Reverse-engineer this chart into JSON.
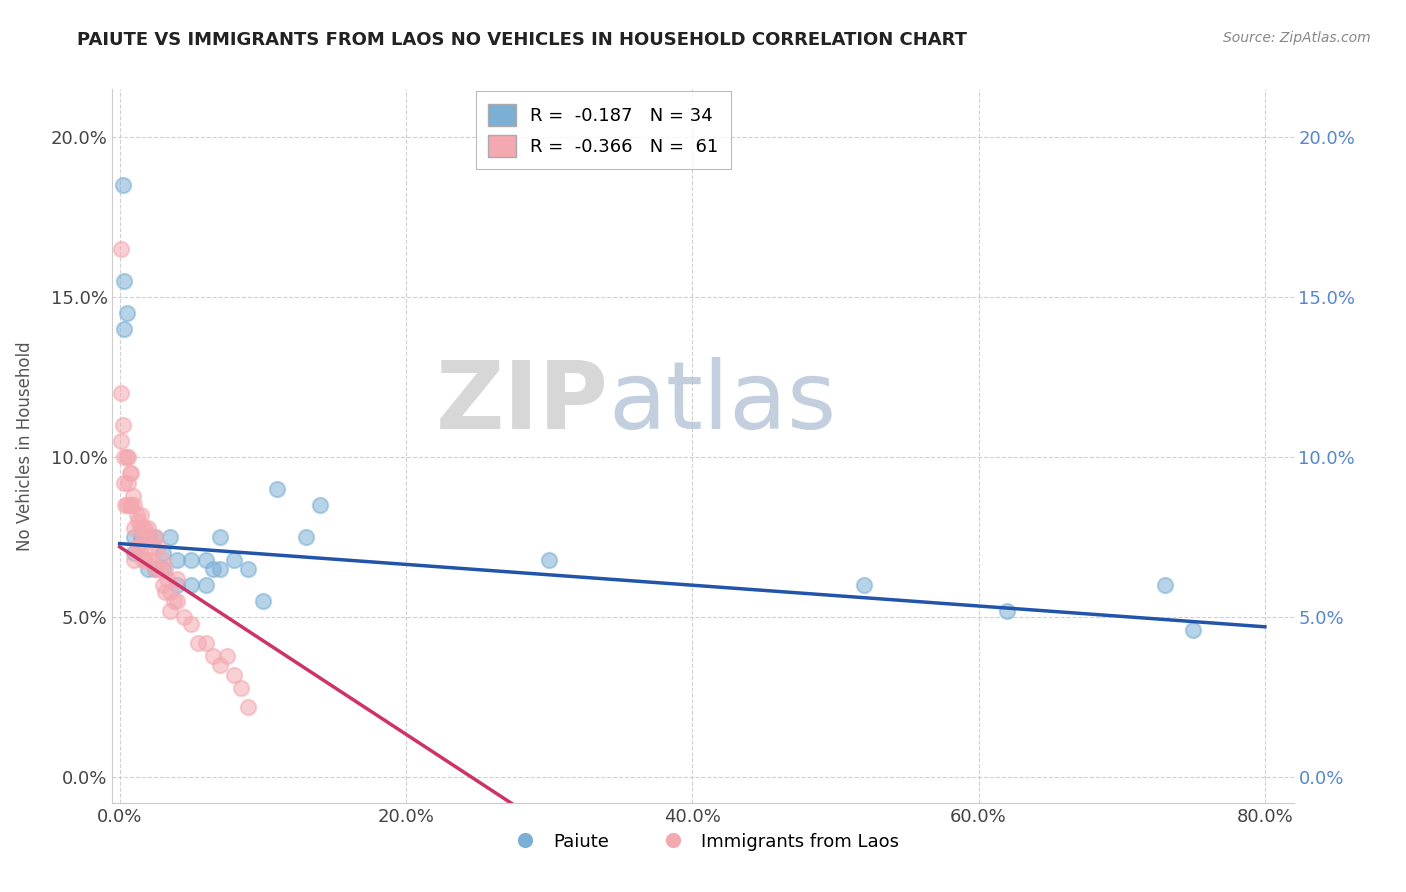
{
  "title": "PAIUTE VS IMMIGRANTS FROM LAOS NO VEHICLES IN HOUSEHOLD CORRELATION CHART",
  "source": "Source: ZipAtlas.com",
  "xlabel_ticks": [
    "0.0%",
    "20.0%",
    "40.0%",
    "60.0%",
    "80.0%"
  ],
  "ylabel_ticks": [
    "0.0%",
    "5.0%",
    "10.0%",
    "15.0%",
    "20.0%"
  ],
  "xlim": [
    -0.005,
    0.82
  ],
  "ylim": [
    -0.008,
    0.215
  ],
  "legend_blue_label": "Paiute",
  "legend_pink_label": "Immigrants from Laos",
  "r_blue": -0.187,
  "n_blue": 34,
  "r_pink": -0.366,
  "n_pink": 61,
  "blue_color": "#7BAFD4",
  "pink_color": "#F4A8B0",
  "blue_line_color": "#2255AA",
  "pink_line_color": "#CC3366",
  "watermark_zip": "ZIP",
  "watermark_atlas": "atlas",
  "blue_scatter_x": [
    0.002,
    0.003,
    0.003,
    0.005,
    0.01,
    0.01,
    0.015,
    0.02,
    0.02,
    0.025,
    0.025,
    0.03,
    0.03,
    0.035,
    0.04,
    0.04,
    0.05,
    0.05,
    0.06,
    0.06,
    0.065,
    0.07,
    0.07,
    0.08,
    0.09,
    0.1,
    0.11,
    0.13,
    0.14,
    0.3,
    0.52,
    0.62,
    0.73,
    0.75
  ],
  "blue_scatter_y": [
    0.185,
    0.155,
    0.14,
    0.145,
    0.075,
    0.07,
    0.075,
    0.075,
    0.065,
    0.075,
    0.065,
    0.07,
    0.065,
    0.075,
    0.068,
    0.06,
    0.068,
    0.06,
    0.068,
    0.06,
    0.065,
    0.075,
    0.065,
    0.068,
    0.065,
    0.055,
    0.09,
    0.075,
    0.085,
    0.068,
    0.06,
    0.052,
    0.06,
    0.046
  ],
  "pink_scatter_x": [
    0.001,
    0.001,
    0.001,
    0.002,
    0.003,
    0.003,
    0.004,
    0.005,
    0.005,
    0.006,
    0.006,
    0.007,
    0.007,
    0.008,
    0.008,
    0.009,
    0.01,
    0.01,
    0.01,
    0.012,
    0.012,
    0.013,
    0.013,
    0.014,
    0.015,
    0.015,
    0.016,
    0.016,
    0.017,
    0.018,
    0.018,
    0.019,
    0.02,
    0.02,
    0.021,
    0.022,
    0.023,
    0.025,
    0.025,
    0.027,
    0.028,
    0.03,
    0.03,
    0.032,
    0.032,
    0.033,
    0.035,
    0.035,
    0.038,
    0.04,
    0.04,
    0.045,
    0.05,
    0.055,
    0.06,
    0.065,
    0.07,
    0.075,
    0.08,
    0.085,
    0.09
  ],
  "pink_scatter_y": [
    0.165,
    0.12,
    0.105,
    0.11,
    0.1,
    0.092,
    0.085,
    0.1,
    0.085,
    0.1,
    0.092,
    0.095,
    0.085,
    0.095,
    0.085,
    0.088,
    0.085,
    0.078,
    0.068,
    0.082,
    0.072,
    0.08,
    0.072,
    0.078,
    0.082,
    0.072,
    0.078,
    0.068,
    0.075,
    0.078,
    0.068,
    0.075,
    0.078,
    0.068,
    0.075,
    0.068,
    0.072,
    0.075,
    0.065,
    0.072,
    0.065,
    0.068,
    0.06,
    0.065,
    0.058,
    0.062,
    0.058,
    0.052,
    0.055,
    0.062,
    0.055,
    0.05,
    0.048,
    0.042,
    0.042,
    0.038,
    0.035,
    0.038,
    0.032,
    0.028,
    0.022
  ]
}
